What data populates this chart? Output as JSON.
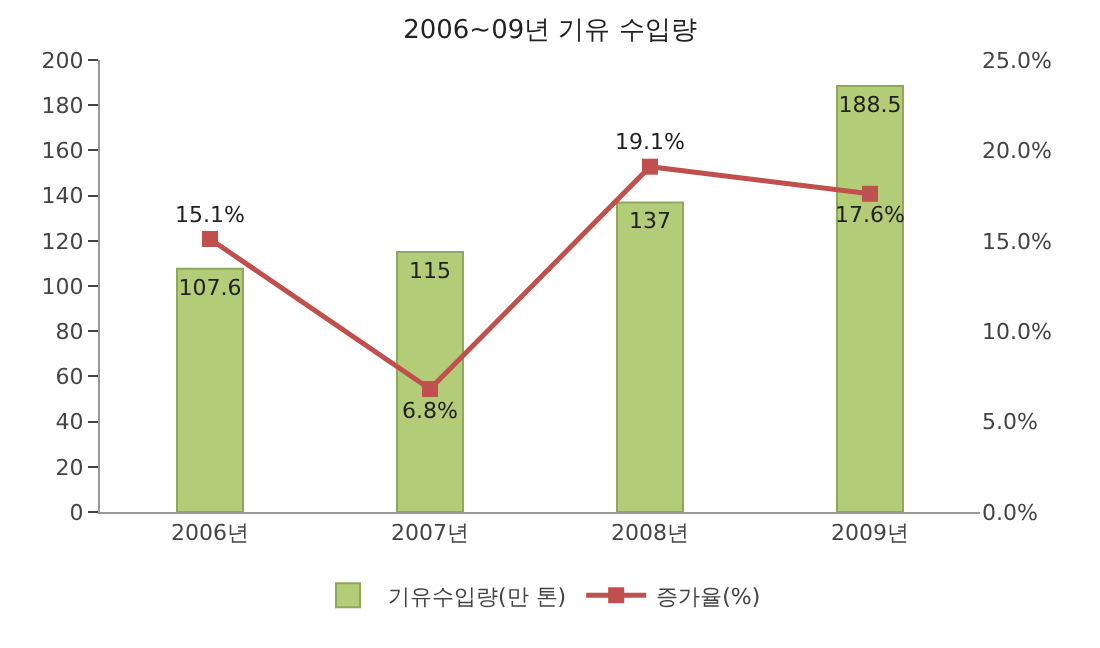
{
  "chart_data": {
    "type": "bar",
    "title": "2006~09년 기유 수입량",
    "categories": [
      "2006년",
      "2007년",
      "2008년",
      "2009년"
    ],
    "series": [
      {
        "name": "기유수입량(만 톤)",
        "color": "#b3cc78",
        "values": [
          107.6,
          115,
          137,
          188.5
        ],
        "value_labels": [
          "107.6",
          "115",
          "137",
          "188.5"
        ]
      },
      {
        "name": "증가율(%)",
        "type": "line",
        "axis": "y2",
        "color": "#c0504d",
        "marker": "square",
        "values": [
          15.1,
          6.8,
          19.1,
          17.6
        ],
        "value_labels": [
          "15.1%",
          "6.8%",
          "19.1%",
          "17.6%"
        ]
      }
    ],
    "ylim": [
      0,
      200
    ],
    "yticks": [
      0,
      20,
      40,
      60,
      80,
      100,
      120,
      140,
      160,
      180,
      200
    ],
    "y2lim": [
      0,
      25
    ],
    "y2ticks": [
      {
        "value": 0,
        "label": "0.0%"
      },
      {
        "value": 5,
        "label": "5.0%"
      },
      {
        "value": 10,
        "label": "10.0%"
      },
      {
        "value": 15,
        "label": "15.0%"
      },
      {
        "value": 20,
        "label": "20.0%"
      },
      {
        "value": 25,
        "label": "25.0%"
      }
    ],
    "legend": "bottom"
  }
}
